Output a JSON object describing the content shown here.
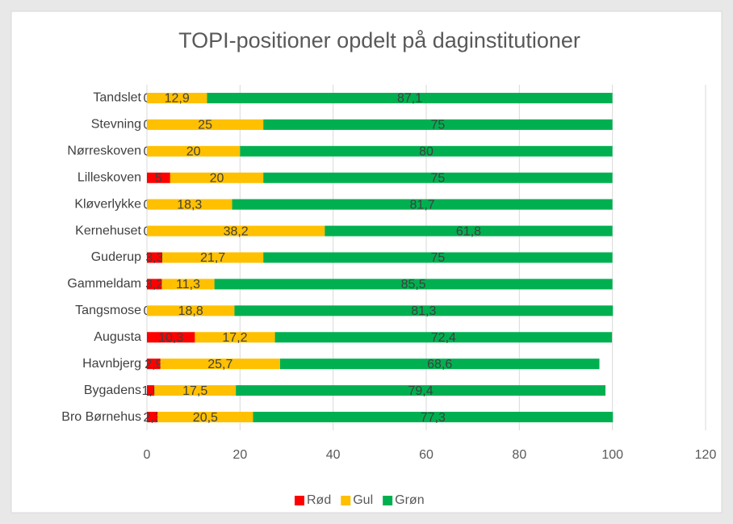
{
  "chart_data": {
    "type": "stacked_barh",
    "title": "TOPI-positioner opdelt på daginstitutioner",
    "categories": [
      "Tandslet",
      "Stevning",
      "Nørreskoven",
      "Lilleskoven",
      "Kløverlykke",
      "Kernehuset",
      "Guderup",
      "Gammeldam",
      "Tangsmose",
      "Augusta",
      "Havnbjerg",
      "Bygadens",
      "Bro Børnehus"
    ],
    "series": [
      {
        "name": "Rød",
        "color": "#ff0000",
        "values": [
          0,
          0,
          0,
          5,
          0,
          0,
          3.3,
          3.2,
          0,
          10.3,
          2.9,
          1.6,
          2.3
        ],
        "value_labels": [
          "0",
          "0",
          "0",
          "5",
          "0",
          "0",
          "3,3",
          "3,2",
          "0",
          "10,3",
          "2,9",
          "1,6",
          "2,3"
        ]
      },
      {
        "name": "Gul",
        "color": "#ffc000",
        "values": [
          12.9,
          25,
          20,
          20,
          18.3,
          38.2,
          21.7,
          11.3,
          18.8,
          17.2,
          25.7,
          17.5,
          20.5
        ],
        "value_labels": [
          "12,9",
          "25",
          "20",
          "20",
          "18,3",
          "38,2",
          "21,7",
          "11,3",
          "18,8",
          "17,2",
          "25,7",
          "17,5",
          "20,5"
        ]
      },
      {
        "name": "Grøn",
        "color": "#00b050",
        "values": [
          87.1,
          75,
          80,
          75,
          81.7,
          61.8,
          75,
          85.5,
          81.3,
          72.4,
          68.6,
          79.4,
          77.3
        ],
        "value_labels": [
          "87,1",
          "75",
          "80",
          "75",
          "81,7",
          "61,8",
          "75",
          "85,5",
          "81,3",
          "72,4",
          "68,6",
          "79,4",
          "77,3"
        ]
      }
    ],
    "xlim": [
      0,
      120
    ],
    "xticks": [
      0,
      20,
      40,
      60,
      80,
      100,
      120
    ],
    "grid": true,
    "legend": "bottom"
  }
}
